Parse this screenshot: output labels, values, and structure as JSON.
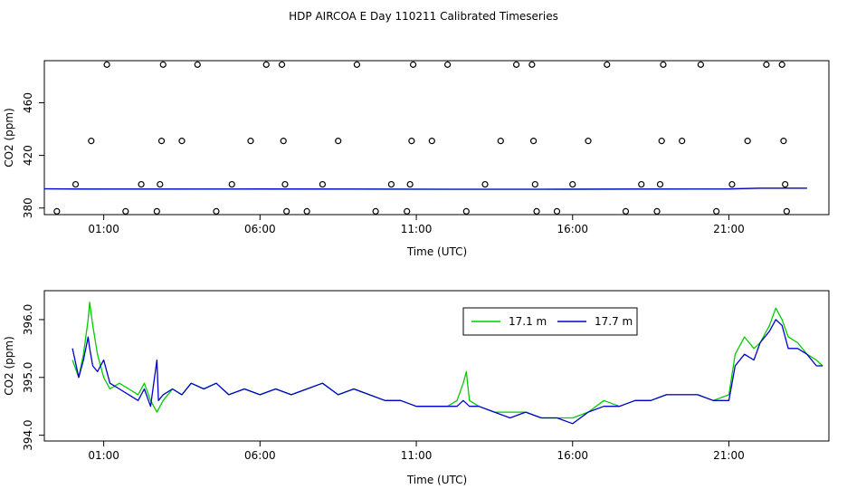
{
  "title": "HDP AIRCOA E  Day 110211  Calibrated Timeseries",
  "chart_data": [
    {
      "type": "scatter",
      "xlabel": "Time (UTC)",
      "ylabel": "CO2 (ppm)",
      "x_ticks": [
        "01:00",
        "06:00",
        "11:00",
        "16:00",
        "21:00"
      ],
      "x_tick_hours": [
        1,
        6,
        11,
        16,
        21
      ],
      "y_ticks": [
        "380",
        "420",
        "460"
      ],
      "y_tick_values": [
        380,
        420,
        460
      ],
      "xlim_hours": [
        -0.9,
        24.2
      ],
      "ylim": [
        375,
        492
      ],
      "grid": false,
      "series": [
        {
          "color": "#00cc00",
          "style": "line",
          "points": [
            [
              -0.9,
              394.6
            ],
            [
              0.5,
              394.5
            ],
            [
              3,
              394.4
            ],
            [
              6,
              394.5
            ],
            [
              9,
              394.4
            ],
            [
              12,
              394.3
            ],
            [
              15,
              394.3
            ],
            [
              18,
              394.4
            ],
            [
              21,
              394.6
            ],
            [
              22,
              395.2
            ],
            [
              23.5,
              395.2
            ]
          ]
        },
        {
          "color": "#0000cc",
          "style": "line",
          "points": [
            [
              -0.9,
              394.6
            ],
            [
              0.5,
              394.4
            ],
            [
              3,
              394.4
            ],
            [
              6,
              394.5
            ],
            [
              9,
              394.4
            ],
            [
              12,
              394.3
            ],
            [
              15,
              394.3
            ],
            [
              18,
              394.4
            ],
            [
              21,
              394.5
            ],
            [
              22,
              395.0
            ],
            [
              23.5,
              395.0
            ]
          ]
        },
        {
          "color": "#000000",
          "style": "open-circles",
          "points": [
            [
              -0.5,
              377.5
            ],
            [
              0.1,
              398
            ],
            [
              0.6,
              431
            ],
            [
              1.1,
              489
            ],
            [
              1.7,
              377.5
            ],
            [
              2.2,
              398
            ],
            [
              2.7,
              377.5
            ],
            [
              2.8,
              398
            ],
            [
              2.85,
              431
            ],
            [
              2.9,
              489
            ],
            [
              3.5,
              431
            ],
            [
              4.0,
              489
            ],
            [
              4.6,
              377.5
            ],
            [
              5.1,
              398
            ],
            [
              5.7,
              431
            ],
            [
              6.2,
              489
            ],
            [
              6.7,
              489
            ],
            [
              6.75,
              431
            ],
            [
              6.8,
              398
            ],
            [
              6.85,
              377.5
            ],
            [
              7.5,
              377.5
            ],
            [
              8.0,
              398
            ],
            [
              8.5,
              431
            ],
            [
              9.1,
              489
            ],
            [
              9.7,
              377.5
            ],
            [
              10.2,
              398
            ],
            [
              10.7,
              377.5
            ],
            [
              10.8,
              398
            ],
            [
              10.85,
              431
            ],
            [
              10.9,
              489
            ],
            [
              11.5,
              431
            ],
            [
              12.0,
              489
            ],
            [
              12.6,
              377.5
            ],
            [
              13.2,
              398
            ],
            [
              13.7,
              431
            ],
            [
              14.2,
              489
            ],
            [
              14.7,
              489
            ],
            [
              14.75,
              431
            ],
            [
              14.8,
              398
            ],
            [
              14.85,
              377.5
            ],
            [
              15.5,
              377.5
            ],
            [
              16.0,
              398
            ],
            [
              16.5,
              431
            ],
            [
              17.1,
              489
            ],
            [
              17.7,
              377.5
            ],
            [
              18.2,
              398
            ],
            [
              18.7,
              377.5
            ],
            [
              18.8,
              398
            ],
            [
              18.85,
              431
            ],
            [
              18.9,
              489
            ],
            [
              19.5,
              431
            ],
            [
              20.1,
              489
            ],
            [
              20.6,
              377.5
            ],
            [
              21.1,
              398
            ],
            [
              21.6,
              431
            ],
            [
              22.2,
              489
            ],
            [
              22.7,
              489
            ],
            [
              22.75,
              431
            ],
            [
              22.8,
              398
            ],
            [
              22.85,
              377.5
            ]
          ]
        }
      ]
    },
    {
      "type": "line",
      "xlabel": "Time (UTC)",
      "ylabel": "CO2 (ppm)",
      "x_ticks": [
        "01:00",
        "06:00",
        "11:00",
        "16:00",
        "21:00"
      ],
      "x_tick_hours": [
        1,
        6,
        11,
        16,
        21
      ],
      "y_ticks": [
        "394.0",
        "395.0",
        "396.0"
      ],
      "y_tick_values": [
        394.0,
        395.0,
        396.0
      ],
      "xlim_hours": [
        -0.9,
        24.2
      ],
      "ylim": [
        393.9,
        396.5
      ],
      "grid": false,
      "legend_position": "top-right",
      "series": [
        {
          "name": "17.1 m",
          "color": "#00cc00",
          "points": [
            [
              0,
              395.3
            ],
            [
              0.2,
              395.0
            ],
            [
              0.35,
              395.4
            ],
            [
              0.5,
              396.0
            ],
            [
              0.55,
              396.3
            ],
            [
              0.65,
              395.9
            ],
            [
              0.8,
              395.4
            ],
            [
              1.0,
              395.0
            ],
            [
              1.2,
              394.8
            ],
            [
              1.5,
              394.9
            ],
            [
              1.8,
              394.8
            ],
            [
              2.1,
              394.7
            ],
            [
              2.3,
              394.9
            ],
            [
              2.5,
              394.6
            ],
            [
              2.7,
              394.4
            ],
            [
              2.9,
              394.6
            ],
            [
              3.2,
              394.8
            ],
            [
              3.5,
              394.7
            ],
            [
              3.8,
              394.9
            ],
            [
              4.2,
              394.8
            ],
            [
              4.6,
              394.9
            ],
            [
              5.0,
              394.7
            ],
            [
              5.5,
              394.8
            ],
            [
              6.0,
              394.7
            ],
            [
              6.5,
              394.8
            ],
            [
              7.0,
              394.7
            ],
            [
              7.5,
              394.8
            ],
            [
              8.0,
              394.9
            ],
            [
              8.5,
              394.7
            ],
            [
              9.0,
              394.8
            ],
            [
              9.5,
              394.7
            ],
            [
              10.0,
              394.6
            ],
            [
              10.5,
              394.6
            ],
            [
              11.0,
              394.5
            ],
            [
              11.5,
              394.5
            ],
            [
              12.0,
              394.5
            ],
            [
              12.3,
              394.6
            ],
            [
              12.5,
              394.9
            ],
            [
              12.6,
              395.1
            ],
            [
              12.7,
              394.6
            ],
            [
              13.0,
              394.5
            ],
            [
              13.5,
              394.4
            ],
            [
              14.0,
              394.4
            ],
            [
              14.5,
              394.4
            ],
            [
              15.0,
              394.3
            ],
            [
              15.5,
              394.3
            ],
            [
              16.0,
              394.3
            ],
            [
              16.5,
              394.4
            ],
            [
              17.0,
              394.6
            ],
            [
              17.5,
              394.5
            ],
            [
              18.0,
              394.6
            ],
            [
              18.5,
              394.6
            ],
            [
              19.0,
              394.7
            ],
            [
              19.5,
              394.7
            ],
            [
              20.0,
              394.7
            ],
            [
              20.5,
              394.6
            ],
            [
              21.0,
              394.7
            ],
            [
              21.2,
              395.4
            ],
            [
              21.5,
              395.7
            ],
            [
              21.8,
              395.5
            ],
            [
              22.0,
              395.6
            ],
            [
              22.3,
              395.9
            ],
            [
              22.5,
              396.2
            ],
            [
              22.7,
              396.0
            ],
            [
              22.9,
              395.7
            ],
            [
              23.2,
              395.6
            ],
            [
              23.5,
              395.4
            ],
            [
              23.8,
              395.3
            ],
            [
              24.0,
              395.2
            ]
          ]
        },
        {
          "name": "17.7 m",
          "color": "#0000cc",
          "points": [
            [
              0,
              395.5
            ],
            [
              0.2,
              395.0
            ],
            [
              0.35,
              395.3
            ],
            [
              0.5,
              395.7
            ],
            [
              0.55,
              395.5
            ],
            [
              0.65,
              395.2
            ],
            [
              0.8,
              395.1
            ],
            [
              1.0,
              395.3
            ],
            [
              1.2,
              394.9
            ],
            [
              1.5,
              394.8
            ],
            [
              1.8,
              394.7
            ],
            [
              2.1,
              394.6
            ],
            [
              2.3,
              394.8
            ],
            [
              2.5,
              394.5
            ],
            [
              2.7,
              395.3
            ],
            [
              2.75,
              394.6
            ],
            [
              2.9,
              394.7
            ],
            [
              3.2,
              394.8
            ],
            [
              3.5,
              394.7
            ],
            [
              3.8,
              394.9
            ],
            [
              4.2,
              394.8
            ],
            [
              4.6,
              394.9
            ],
            [
              5.0,
              394.7
            ],
            [
              5.5,
              394.8
            ],
            [
              6.0,
              394.7
            ],
            [
              6.5,
              394.8
            ],
            [
              7.0,
              394.7
            ],
            [
              7.5,
              394.8
            ],
            [
              8.0,
              394.9
            ],
            [
              8.5,
              394.7
            ],
            [
              9.0,
              394.8
            ],
            [
              9.5,
              394.7
            ],
            [
              10.0,
              394.6
            ],
            [
              10.5,
              394.6
            ],
            [
              11.0,
              394.5
            ],
            [
              11.5,
              394.5
            ],
            [
              12.0,
              394.5
            ],
            [
              12.3,
              394.5
            ],
            [
              12.5,
              394.6
            ],
            [
              12.7,
              394.5
            ],
            [
              13.0,
              394.5
            ],
            [
              13.5,
              394.4
            ],
            [
              14.0,
              394.3
            ],
            [
              14.5,
              394.4
            ],
            [
              15.0,
              394.3
            ],
            [
              15.5,
              394.3
            ],
            [
              16.0,
              394.2
            ],
            [
              16.5,
              394.4
            ],
            [
              17.0,
              394.5
            ],
            [
              17.5,
              394.5
            ],
            [
              18.0,
              394.6
            ],
            [
              18.5,
              394.6
            ],
            [
              19.0,
              394.7
            ],
            [
              19.5,
              394.7
            ],
            [
              20.0,
              394.7
            ],
            [
              20.5,
              394.6
            ],
            [
              21.0,
              394.6
            ],
            [
              21.2,
              395.2
            ],
            [
              21.5,
              395.4
            ],
            [
              21.8,
              395.3
            ],
            [
              22.0,
              395.6
            ],
            [
              22.3,
              395.8
            ],
            [
              22.5,
              396.0
            ],
            [
              22.7,
              395.9
            ],
            [
              22.9,
              395.5
            ],
            [
              23.2,
              395.5
            ],
            [
              23.5,
              395.4
            ],
            [
              23.8,
              395.2
            ],
            [
              24.0,
              395.2
            ]
          ]
        }
      ]
    }
  ]
}
